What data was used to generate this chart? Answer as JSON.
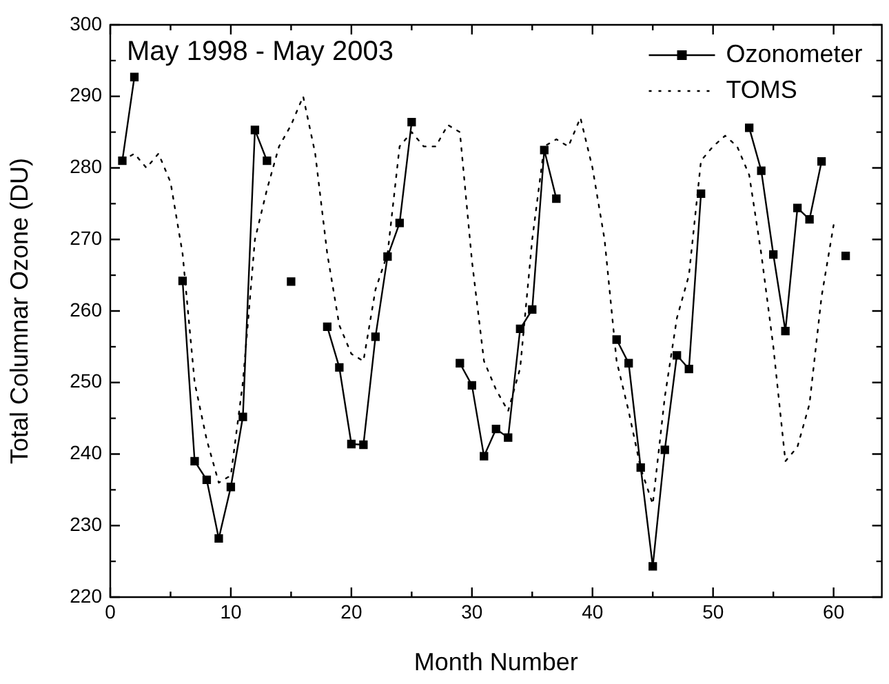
{
  "chart_data": {
    "type": "line",
    "title": "May 1998 - May 2003",
    "xlabel": "Month Number",
    "ylabel": "Total Columnar Ozone (DU)",
    "xlim": [
      0,
      64
    ],
    "xticks": [
      0,
      {
        "value": 5,
        "label": null
      },
      10,
      {
        "value": 15,
        "label": null
      },
      20,
      {
        "value": 25,
        "label": null
      },
      30,
      {
        "value": 35,
        "label": null
      },
      40,
      {
        "value": 45,
        "label": null
      },
      50,
      {
        "value": 55,
        "label": null
      },
      60
    ],
    "ylim": [
      220,
      300
    ],
    "yticks": [
      220,
      {
        "value": 225,
        "label": null
      },
      230,
      {
        "value": 235,
        "label": null
      },
      240,
      {
        "value": 245,
        "label": null
      },
      250,
      {
        "value": 255,
        "label": null
      },
      260,
      {
        "value": 265,
        "label": null
      },
      270,
      {
        "value": 275,
        "label": null
      },
      280,
      {
        "value": 285,
        "label": null
      },
      290,
      {
        "value": 295,
        "label": null
      },
      300
    ],
    "grid": false,
    "legend": "top right",
    "series": [
      {
        "name": "Ozonometer",
        "color": "#000000",
        "marker": "square",
        "line_style": "solid",
        "x": [
          1,
          2,
          3,
          6,
          7,
          8,
          9,
          10,
          11,
          12,
          13,
          14,
          15,
          16,
          18,
          19,
          20,
          21,
          22,
          23,
          24,
          25,
          26,
          29,
          30,
          31,
          32,
          33,
          34,
          35,
          36,
          37,
          38,
          42,
          43,
          44,
          45,
          46,
          47,
          48,
          49,
          50,
          53,
          54,
          55,
          56,
          57,
          58,
          59,
          60,
          61
        ],
        "values": [
          281,
          292.7,
          null,
          264.2,
          239,
          236.4,
          228.2,
          235.4,
          245.2,
          285.3,
          281,
          null,
          264.1,
          null,
          257.8,
          252.1,
          241.4,
          241.3,
          256.4,
          267.6,
          272.3,
          286.4,
          null,
          252.7,
          249.6,
          239.7,
          243.5,
          242.3,
          257.5,
          260.2,
          282.5,
          275.7,
          null,
          256,
          252.7,
          238.1,
          224.3,
          240.6,
          253.8,
          251.9,
          276.4,
          null,
          285.6,
          279.6,
          267.9,
          257.2,
          274.4,
          272.8,
          280.9,
          null,
          267.7
        ]
      },
      {
        "name": "TOMS",
        "color": "#000000",
        "marker": "none",
        "line_style": "dotted",
        "x": [
          1,
          2,
          3,
          4,
          5,
          6,
          7,
          8,
          9,
          10,
          11,
          12,
          13,
          14,
          15,
          16,
          17,
          18,
          19,
          20,
          21,
          22,
          23,
          24,
          25,
          26,
          27,
          28,
          29,
          30,
          31,
          32,
          33,
          34,
          35,
          36,
          37,
          38,
          39,
          40,
          41,
          42,
          43,
          44,
          45,
          46,
          47,
          48,
          49,
          50,
          51,
          52,
          53,
          54,
          55,
          56,
          57,
          58,
          59,
          60
        ],
        "values": [
          281,
          282,
          280,
          282,
          278,
          268,
          250,
          242,
          236,
          237,
          250,
          270,
          277,
          283,
          286,
          290,
          282,
          268,
          258,
          254,
          253,
          263,
          268,
          283,
          285,
          283,
          283,
          286,
          285,
          267,
          253,
          249,
          246,
          252,
          270,
          283,
          284,
          283,
          287,
          280,
          270,
          253,
          246,
          238,
          233,
          248,
          259,
          265,
          281,
          283,
          284.5,
          283,
          279,
          268,
          255,
          239,
          241,
          247,
          262,
          272
        ]
      }
    ]
  }
}
